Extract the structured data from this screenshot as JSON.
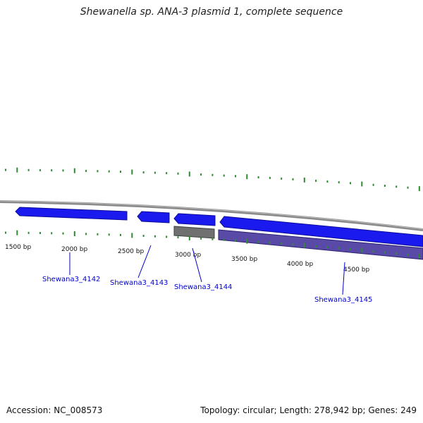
{
  "title": "Shewanella sp. ANA-3 plasmid 1, complete sequence",
  "colors": {
    "backbone": "#8a8a8a",
    "tick": "#2e8b2e",
    "forward_gene": "#1a1aee",
    "reverse_gene": "#5a4aa8",
    "other_feature": "#707070",
    "gene_label": "#0000cc"
  },
  "bp_labels": [
    "1500 bp",
    "2000 bp",
    "2500 bp",
    "3000 bp",
    "3500 bp",
    "4000 bp",
    "4500 bp"
  ],
  "genes": [
    {
      "label": "Shewana3_4142",
      "strand": "forward"
    },
    {
      "label": "Shewana3_4143",
      "strand": "forward"
    },
    {
      "label": "Shewana3_4144",
      "strand": "reverse"
    },
    {
      "label": "Shewana3_4145",
      "strand": "reverse"
    }
  ],
  "footer": {
    "accession": "Accession: NC_008573",
    "summary": "Topology: circular; Length: 278,942 bp; Genes: 249"
  }
}
